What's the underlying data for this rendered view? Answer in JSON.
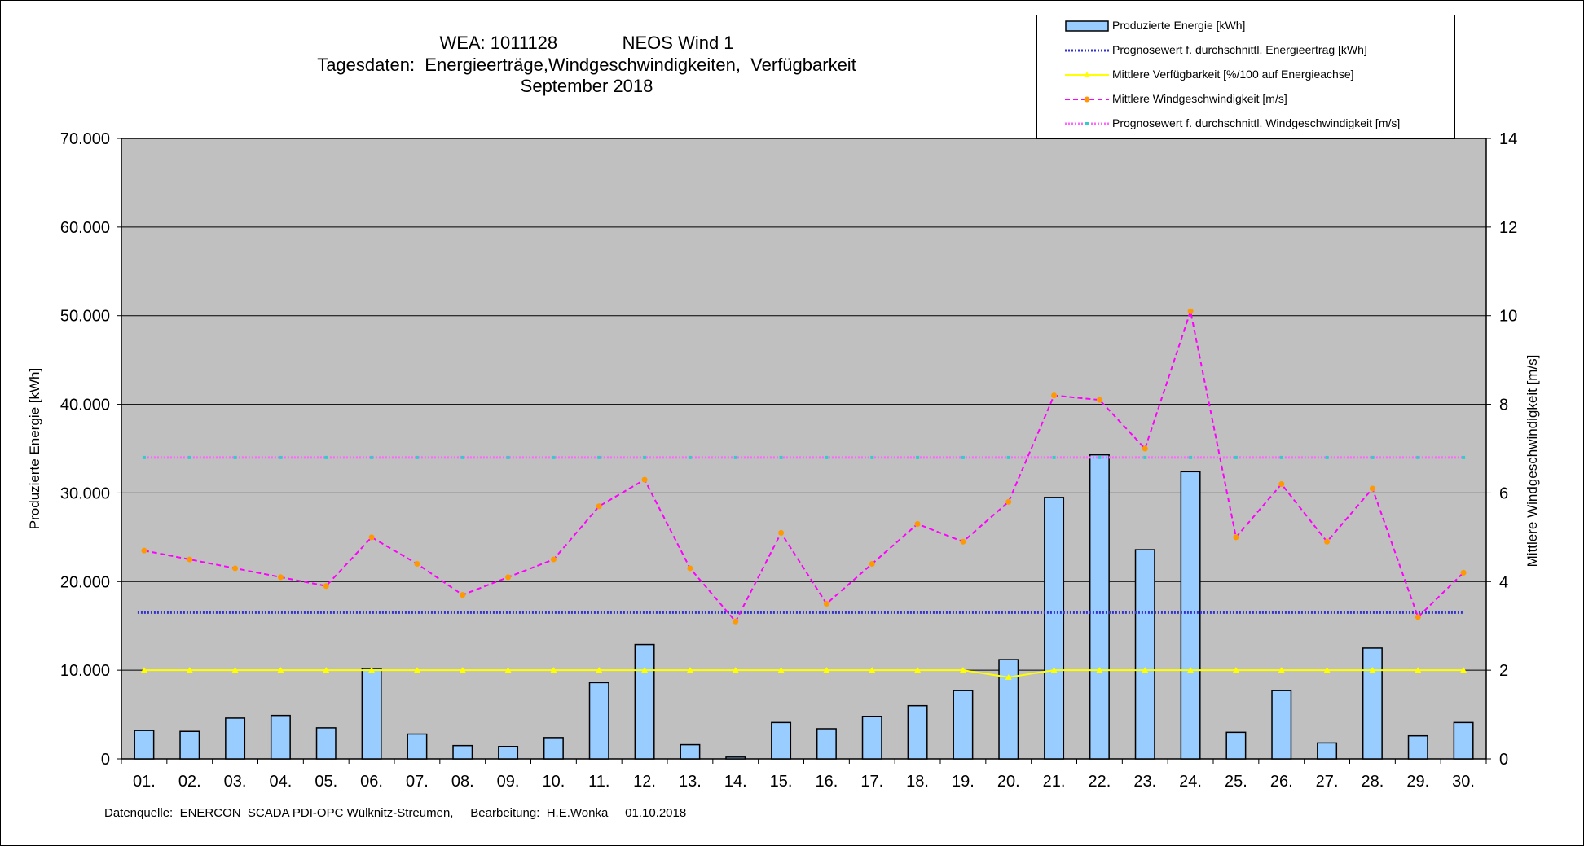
{
  "title": {
    "line1": "WEA: 1011128             NEOS Wind 1",
    "line2": "Tagesdaten:  Energieerträge,Windgeschwindigkeiten,  Verfügbarkeit",
    "line3": "September 2018"
  },
  "footer": "Datenquelle:  ENERCON  SCADA PDI-OPC Wülknitz-Streumen,     Bearbeitung:  H.E.Wonka     01.10.2018",
  "colors": {
    "plot_bg": "#c0c0c0",
    "bar_fill": "#99ccff",
    "bar_stroke": "#000000",
    "energy_forecast": "#3333cc",
    "availability": "#ffff00",
    "wind": "#ff00ff",
    "wind_marker": "#ff9900",
    "wind_forecast": "#ff66ff",
    "wind_forecast_marker": "#33cccc"
  },
  "chart_data": {
    "type": "bar",
    "xlabel": "",
    "ylabel": "Produzierte Energie [kWh]",
    "y2label": "Mittlere Windgeschwindigkeit [m/s]",
    "ylim": [
      0,
      70000
    ],
    "y2lim": [
      0,
      14
    ],
    "y_ticks": [
      "0",
      "10.000",
      "20.000",
      "30.000",
      "40.000",
      "50.000",
      "60.000",
      "70.000"
    ],
    "y2_ticks": [
      "0",
      "2",
      "4",
      "6",
      "8",
      "10",
      "12",
      "14"
    ],
    "grid": true,
    "legend_position": "top-right",
    "categories": [
      "01.",
      "02.",
      "03.",
      "04.",
      "05.",
      "06.",
      "07.",
      "08.",
      "09.",
      "10.",
      "11.",
      "12.",
      "13.",
      "14.",
      "15.",
      "16.",
      "17.",
      "18.",
      "19.",
      "20.",
      "21.",
      "22.",
      "23.",
      "24.",
      "25.",
      "26.",
      "27.",
      "28.",
      "29.",
      "30."
    ],
    "series": [
      {
        "name": "Produzierte Energie [kWh]",
        "kind": "bar",
        "axis": "left",
        "values": [
          3200,
          3100,
          4600,
          4900,
          3500,
          10200,
          2800,
          1500,
          1400,
          2400,
          8600,
          12900,
          1600,
          200,
          4100,
          3400,
          4800,
          6000,
          7700,
          11200,
          29500,
          34300,
          23600,
          32400,
          3000,
          7700,
          1800,
          12500,
          2600,
          4100
        ]
      },
      {
        "name": "Prognosewert f. durchschnittl. Energieertrag  [kWh]",
        "kind": "line",
        "axis": "left",
        "values": [
          16500,
          16500,
          16500,
          16500,
          16500,
          16500,
          16500,
          16500,
          16500,
          16500,
          16500,
          16500,
          16500,
          16500,
          16500,
          16500,
          16500,
          16500,
          16500,
          16500,
          16500,
          16500,
          16500,
          16500,
          16500,
          16500,
          16500,
          16500,
          16500,
          16500
        ]
      },
      {
        "name": "Mittlere Verfügbarkeit [%/100 auf Energieachse]",
        "kind": "line",
        "axis": "left",
        "values": [
          10000,
          10000,
          10000,
          10000,
          10000,
          10000,
          10000,
          10000,
          10000,
          10000,
          10000,
          10000,
          10000,
          10000,
          10000,
          10000,
          10000,
          10000,
          10000,
          9200,
          10000,
          10000,
          10000,
          10000,
          10000,
          10000,
          10000,
          10000,
          10000,
          10000
        ]
      },
      {
        "name": "Mittlere Windgeschwindigkeit [m/s]",
        "kind": "line",
        "axis": "right",
        "values": [
          4.7,
          4.5,
          4.3,
          4.1,
          3.9,
          5.0,
          4.4,
          3.7,
          4.1,
          4.5,
          5.7,
          6.3,
          4.3,
          3.1,
          5.1,
          3.5,
          4.4,
          5.3,
          4.9,
          5.8,
          8.2,
          8.1,
          7.0,
          10.1,
          5.0,
          6.2,
          4.9,
          6.1,
          3.2,
          4.2
        ]
      },
      {
        "name": "Prognosewert f. durchschnittl. Windgeschwindigkeit [m/s]",
        "kind": "line",
        "axis": "right",
        "values": [
          6.8,
          6.8,
          6.8,
          6.8,
          6.8,
          6.8,
          6.8,
          6.8,
          6.8,
          6.8,
          6.8,
          6.8,
          6.8,
          6.8,
          6.8,
          6.8,
          6.8,
          6.8,
          6.8,
          6.8,
          6.8,
          6.8,
          6.8,
          6.8,
          6.8,
          6.8,
          6.8,
          6.8,
          6.8,
          6.8
        ]
      }
    ]
  }
}
